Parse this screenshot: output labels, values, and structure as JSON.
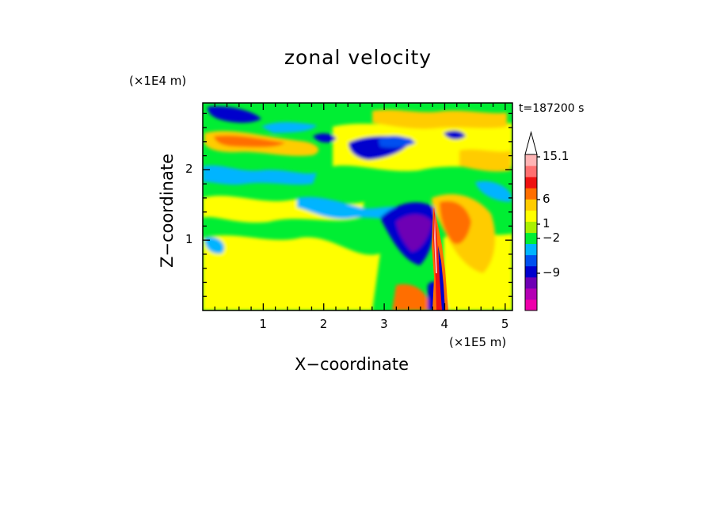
{
  "chart_data": {
    "type": "heatmap",
    "title": "zonal velocity",
    "xlabel": "X−coordinate",
    "ylabel": "Z−coordinate",
    "x_multiplier": "(×1E5 m)",
    "y_multiplier": "(×1E4 m)",
    "time_label": "t=187200 s",
    "xlim": [
      0,
      5.12
    ],
    "ylim": [
      0,
      2.95
    ],
    "x_ticks": [
      1,
      2,
      3,
      4,
      5
    ],
    "x_tick_labels": [
      "1",
      "2",
      "3",
      "4",
      "5"
    ],
    "y_ticks": [
      1,
      2
    ],
    "y_tick_labels": [
      "1",
      "2"
    ],
    "colorbar": {
      "levels": [
        {
          "color": "#ee00aa"
        },
        {
          "color": "#b400b4"
        },
        {
          "color": "#6e00b4"
        },
        {
          "color": "#0000cd"
        },
        {
          "color": "#0050f0"
        },
        {
          "color": "#00b4ff"
        },
        {
          "color": "#00ee33"
        },
        {
          "color": "#aaf000"
        },
        {
          "color": "#ffff00"
        },
        {
          "color": "#ffcc00"
        },
        {
          "color": "#ff6e00"
        },
        {
          "color": "#ee1111"
        },
        {
          "color": "#ff7070"
        },
        {
          "color": "#ffb4b4"
        }
      ],
      "labels": [
        {
          "text": "15.1",
          "value": 15.1
        },
        {
          "text": "6",
          "value": 6
        },
        {
          "text": "1",
          "value": 1
        },
        {
          "text": "−2",
          "value": -2
        },
        {
          "text": "−9",
          "value": -9
        }
      ],
      "extend": "max"
    },
    "field_regions": [
      {
        "region": "background",
        "level": "green",
        "value": -1
      },
      {
        "region": "lower-left layer",
        "level": "yellow",
        "value": 0.5
      },
      {
        "region": "upper band z≈2.4",
        "level": "orange",
        "value": 3
      },
      {
        "region": "upper jet core z≈2.4, x≈3.0",
        "level": "dark blue",
        "value": -5
      },
      {
        "region": "mountain-wave lee trough x≈3.5, z≈1.1",
        "level": "dark blue",
        "value": -6
      },
      {
        "region": "lee plume x≈3.9, z≈0.5-1.4",
        "level": "red/pink",
        "value": 8
      },
      {
        "region": "upstream cyan bands z≈2.0",
        "level": "cyan",
        "value": -2.5
      }
    ]
  }
}
